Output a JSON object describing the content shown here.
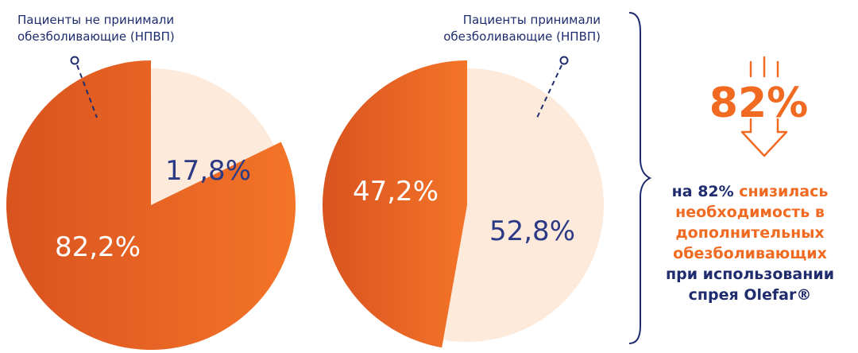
{
  "chart_data": [
    {
      "type": "pie",
      "callout": [
        "Пациенты не принимали",
        "обезболивающие (НПВП)"
      ],
      "slices": [
        {
          "label": "17,8%",
          "value": 17.8
        },
        {
          "label": "82,2%",
          "value": 82.2
        }
      ]
    },
    {
      "type": "pie",
      "callout": [
        "Пациенты принимали",
        "обезболивающие (НПВП)"
      ],
      "slices": [
        {
          "label": "52,8%",
          "value": 52.8
        },
        {
          "label": "47,2%",
          "value": 47.2
        }
      ]
    }
  ],
  "summary": {
    "big_percent": "82%",
    "lines": [
      [
        {
          "text": "на 82% ",
          "style": "blue"
        },
        {
          "text": "снизилась",
          "style": "orange"
        }
      ],
      [
        {
          "text": "необходимость в",
          "style": "orange"
        }
      ],
      [
        {
          "text": "дополнительных",
          "style": "orange"
        }
      ],
      [
        {
          "text": "обезболивающих",
          "style": "orange"
        }
      ],
      [
        {
          "text": "при использовании",
          "style": "blue"
        }
      ],
      [
        {
          "text": "спрея Olefar®",
          "style": "blue"
        }
      ]
    ]
  },
  "colors": {
    "orange": "#f06a22",
    "orange_dark": "#d9531f",
    "light": "#fdeadb",
    "blue": "#1f2c6e"
  }
}
